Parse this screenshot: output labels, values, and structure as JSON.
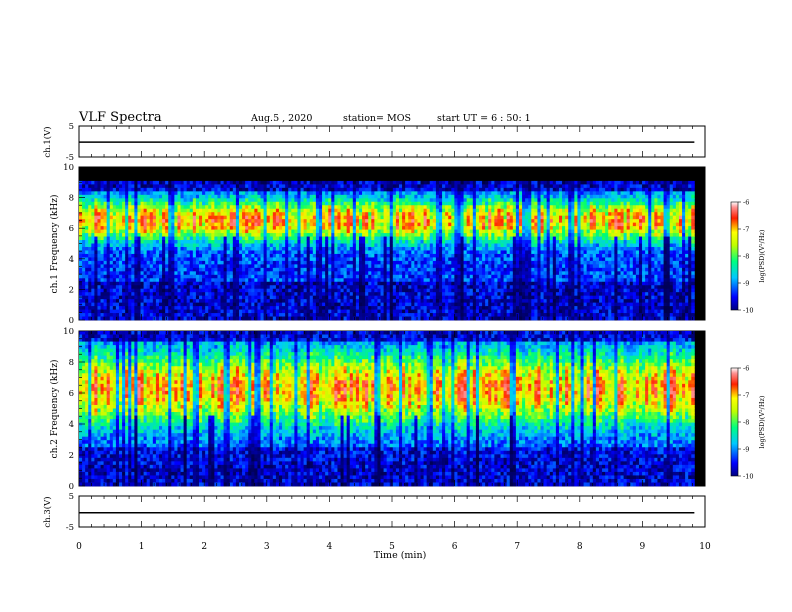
{
  "header": {
    "title": "VLF Spectra",
    "date": "Aug.5 , 2020",
    "station": "station= MOS",
    "start": "start UT = 6 : 50: 1"
  },
  "colors": {
    "background": "#000000",
    "lowest": "#0000cc",
    "low": "#00ccff",
    "mid": "#00ff66",
    "high": "#ffff00",
    "highest": "#ff2200"
  },
  "chart_data": [
    {
      "type": "line",
      "panel": "ch1-waveform",
      "ylabel": "ch.1(V)",
      "ylim": [
        -5,
        5
      ],
      "y_ticks": [
        "5",
        "-5"
      ],
      "x": [
        0,
        9.83
      ],
      "values": [
        -0.2,
        -0.2
      ]
    },
    {
      "type": "heatmap",
      "panel": "ch1-spectrogram",
      "ylabel": "ch.1 Frequency (kHz)",
      "ylim": [
        0,
        10
      ],
      "xlim": [
        0,
        10
      ],
      "y_ticks": [
        "0",
        "2",
        "4",
        "6",
        "8",
        "10"
      ],
      "data_xmax": 9.83,
      "band_top_khz": 9.0,
      "peak_band_khz": [
        5.5,
        7.5
      ],
      "colorbar": {
        "label": "log(PSD)(V²/Hz)",
        "range": [
          -10,
          -6
        ],
        "ticks": [
          "-6",
          "-7",
          "-8",
          "-9",
          "-10"
        ]
      }
    },
    {
      "type": "heatmap",
      "panel": "ch2-spectrogram",
      "ylabel": "ch.2 Frequency (kHz)",
      "ylim": [
        0,
        10
      ],
      "xlim": [
        0,
        10
      ],
      "y_ticks": [
        "0",
        "2",
        "4",
        "6",
        "8",
        "10"
      ],
      "data_xmax": 9.83,
      "band_top_khz": 10.0,
      "peak_band_khz": [
        4.5,
        8.0
      ],
      "colorbar": {
        "label": "log(PSD)(V²/Hz)",
        "range": [
          -10,
          -6
        ],
        "ticks": [
          "-6",
          "-7",
          "-8",
          "-9",
          "-10"
        ]
      }
    },
    {
      "type": "line",
      "panel": "ch3-waveform",
      "ylabel": "ch.3(V)",
      "ylim": [
        -5,
        5
      ],
      "y_ticks": [
        "5",
        "-5"
      ],
      "x": [
        0,
        9.83
      ],
      "values": [
        -0.4,
        -0.4
      ]
    }
  ],
  "xaxis": {
    "label": "Time (min)",
    "ticks": [
      "0",
      "1",
      "2",
      "3",
      "4",
      "5",
      "6",
      "7",
      "8",
      "9",
      "10"
    ]
  }
}
